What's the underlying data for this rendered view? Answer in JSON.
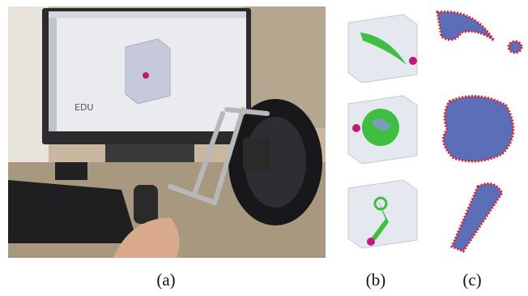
{
  "panels": [
    {
      "label": "(a)"
    },
    {
      "label": "(b)"
    },
    {
      "label": "(c)"
    }
  ],
  "photo_text": "EDU"
}
